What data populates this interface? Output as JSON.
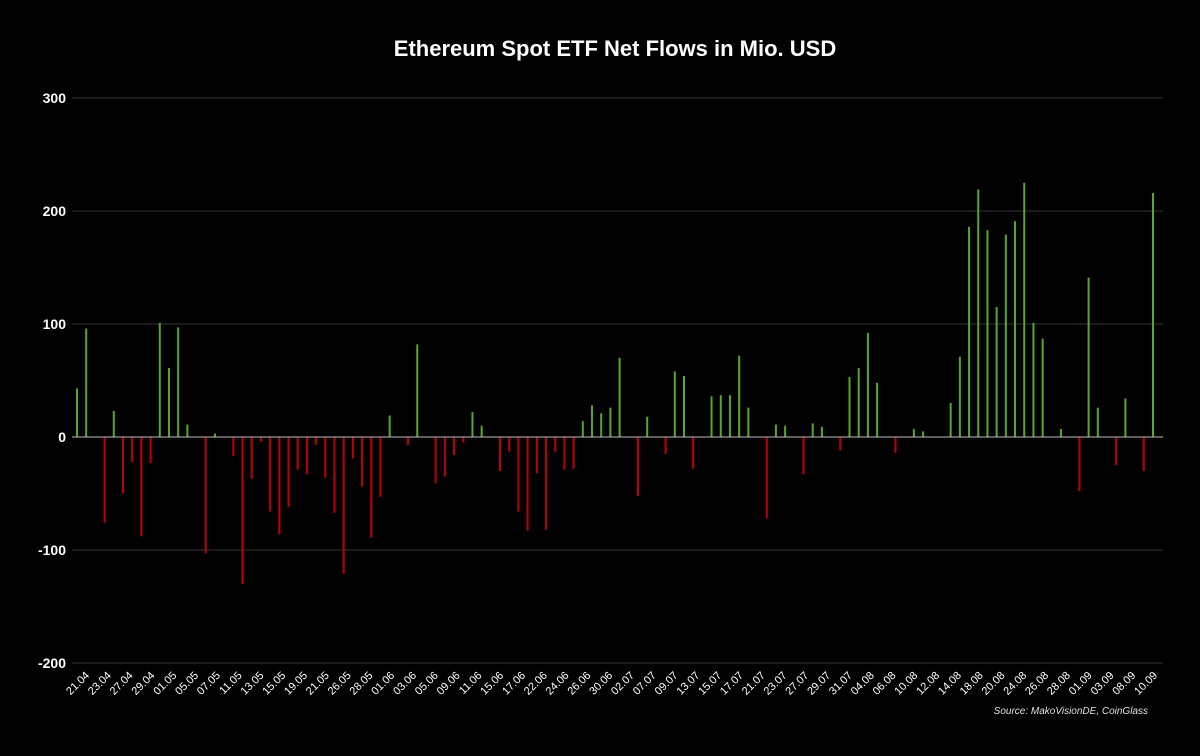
{
  "chart_data": {
    "type": "bar",
    "title": "Ethereum Spot ETF Net Flows in Mio. USD",
    "xlabel": "",
    "ylabel": "",
    "ylim": [
      -200,
      300
    ],
    "yticks": [
      300,
      200,
      100,
      0,
      -100,
      -200
    ],
    "ytick_labels": [
      "300",
      "200",
      "100",
      "0",
      "-100",
      "-200"
    ],
    "grid": true,
    "legend": "none",
    "colors": {
      "positive": "#56a82b",
      "negative": "#c00000",
      "background": "#000000",
      "grid": "#333333",
      "zero_line": "#bbbbbb"
    },
    "xtick_labels": [
      "21.04",
      "23.04",
      "27.04",
      "29.04",
      "01.05",
      "05.05",
      "07.05",
      "11.05",
      "13.05",
      "15.05",
      "19.05",
      "21.05",
      "26.05",
      "28.05",
      "01.06",
      "03.06",
      "05.06",
      "09.06",
      "11.06",
      "15.06",
      "17.06",
      "22.06",
      "24.06",
      "26.06",
      "30.06",
      "02.07",
      "07.07",
      "09.07",
      "13.07",
      "15.07",
      "17.07",
      "21.07",
      "23.07",
      "27.07",
      "29.07",
      "31.07",
      "04.08",
      "06.08",
      "10.08",
      "12.08",
      "14.08",
      "18.08",
      "20.08",
      "24.08",
      "26.08",
      "28.08",
      "01.09",
      "03.09",
      "08.09",
      "10.09"
    ],
    "values": [
      43,
      96,
      0,
      -76,
      23,
      -50,
      -22,
      -88,
      -23,
      101,
      61,
      97,
      11,
      0,
      -103,
      3,
      0,
      -17,
      -130,
      -37,
      -4,
      -66,
      -86,
      -62,
      -29,
      -33,
      -7,
      -36,
      -67,
      -121,
      -19,
      -44,
      -89,
      -53,
      19,
      0,
      -7,
      82,
      0,
      -41,
      -35,
      -16,
      -5,
      22,
      10,
      0,
      -30,
      -13,
      -66,
      -83,
      -32,
      -82,
      -13,
      -29,
      -28,
      14,
      28,
      21,
      26,
      70,
      0,
      -52,
      18,
      0,
      -15,
      58,
      54,
      -28,
      0,
      36,
      37,
      37,
      72,
      26,
      0,
      -72,
      11,
      10,
      0,
      -33,
      12,
      9,
      0,
      -12,
      53,
      61,
      92,
      48,
      0,
      -14,
      0,
      7,
      5,
      0,
      0,
      30,
      71,
      186,
      219,
      183,
      115,
      179,
      191,
      225,
      101,
      87,
      0,
      7,
      0,
      -48,
      141,
      26,
      0,
      -25,
      34,
      0,
      -30,
      216
    ],
    "source": "Source: MakoVisionDE, CoinGlass"
  }
}
